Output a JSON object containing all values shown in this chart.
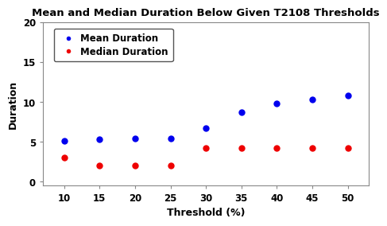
{
  "title": "Mean and Median Duration Below Given T2108 Thresholds",
  "xlabel": "Threshold (%)",
  "ylabel": "Duration",
  "x": [
    10,
    15,
    20,
    25,
    30,
    35,
    40,
    45,
    50
  ],
  "mean_duration": [
    5.1,
    5.3,
    5.4,
    5.4,
    6.7,
    8.7,
    9.8,
    10.3,
    10.8
  ],
  "median_duration": [
    3.0,
    2.0,
    2.0,
    2.0,
    4.2,
    4.2,
    4.2,
    4.2,
    4.2
  ],
  "mean_color": "#0000EE",
  "median_color": "#EE0000",
  "bg_color": "#FFFFFF",
  "plot_bg_color": "#FFFFFF",
  "ylim": [
    -0.5,
    20
  ],
  "xlim": [
    7,
    53
  ],
  "xticks": [
    10,
    15,
    20,
    25,
    30,
    35,
    40,
    45,
    50
  ],
  "yticks": [
    0,
    5,
    10,
    15,
    20
  ],
  "title_fontsize": 9.5,
  "axis_label_fontsize": 9,
  "tick_fontsize": 8.5,
  "legend_fontsize": 8.5,
  "marker_size": 5,
  "spine_color": "#888888"
}
